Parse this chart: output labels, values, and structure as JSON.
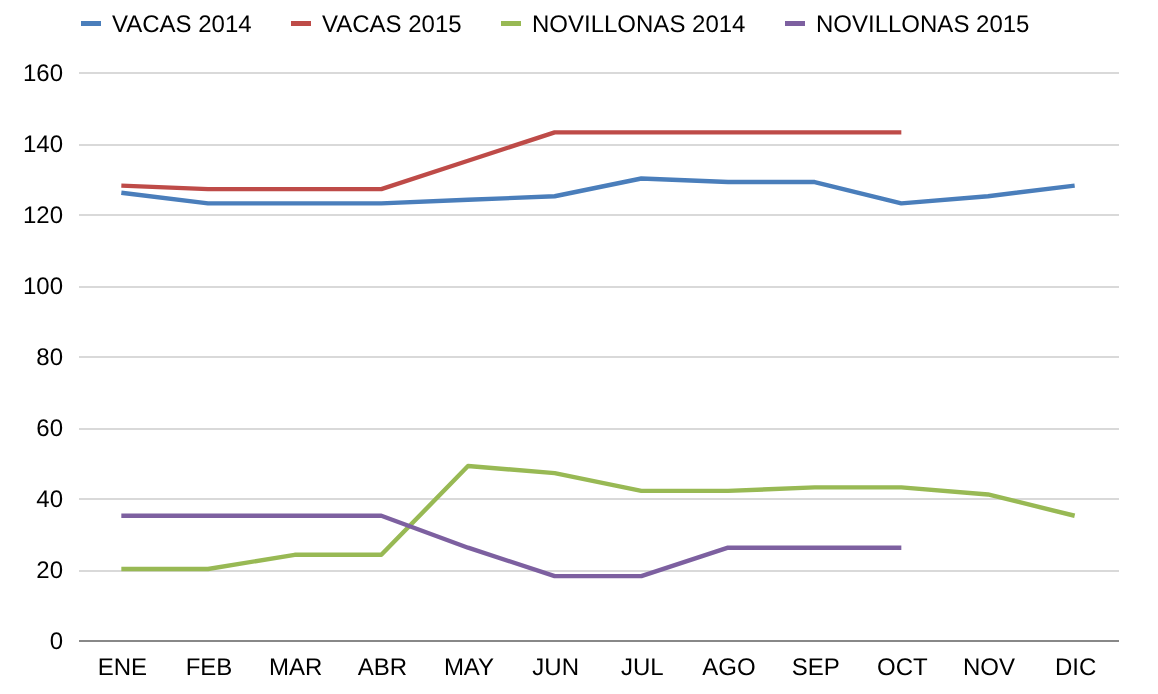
{
  "chart_data": {
    "type": "line",
    "categories": [
      "ENE",
      "FEB",
      "MAR",
      "ABR",
      "MAY",
      "JUN",
      "JUL",
      "AGO",
      "SEP",
      "OCT",
      "NOV",
      "DIC"
    ],
    "series": [
      {
        "name": "VACAS 2014",
        "color": "#4a7ebb",
        "values": [
          126,
          123,
          123,
          123,
          124,
          125,
          130,
          129,
          129,
          123,
          125,
          128
        ]
      },
      {
        "name": "VACAS 2015",
        "color": "#be4b48",
        "values": [
          128,
          127,
          127,
          127,
          135,
          143,
          143,
          143,
          143,
          143,
          null,
          null
        ]
      },
      {
        "name": "NOVILLONAS 2014",
        "color": "#98b954",
        "values": [
          20,
          20,
          24,
          24,
          49,
          47,
          42,
          42,
          43,
          43,
          41,
          35
        ]
      },
      {
        "name": "NOVILLONAS 2015",
        "color": "#7d60a0",
        "values": [
          35,
          35,
          35,
          35,
          26,
          18,
          18,
          26,
          26,
          26,
          null,
          null
        ]
      }
    ],
    "ylim": [
      0,
      160
    ],
    "yticks": [
      0,
      20,
      40,
      60,
      80,
      100,
      120,
      140,
      160
    ],
    "grid": "y",
    "legend": "top",
    "marker": "none",
    "line_style": "solid"
  }
}
